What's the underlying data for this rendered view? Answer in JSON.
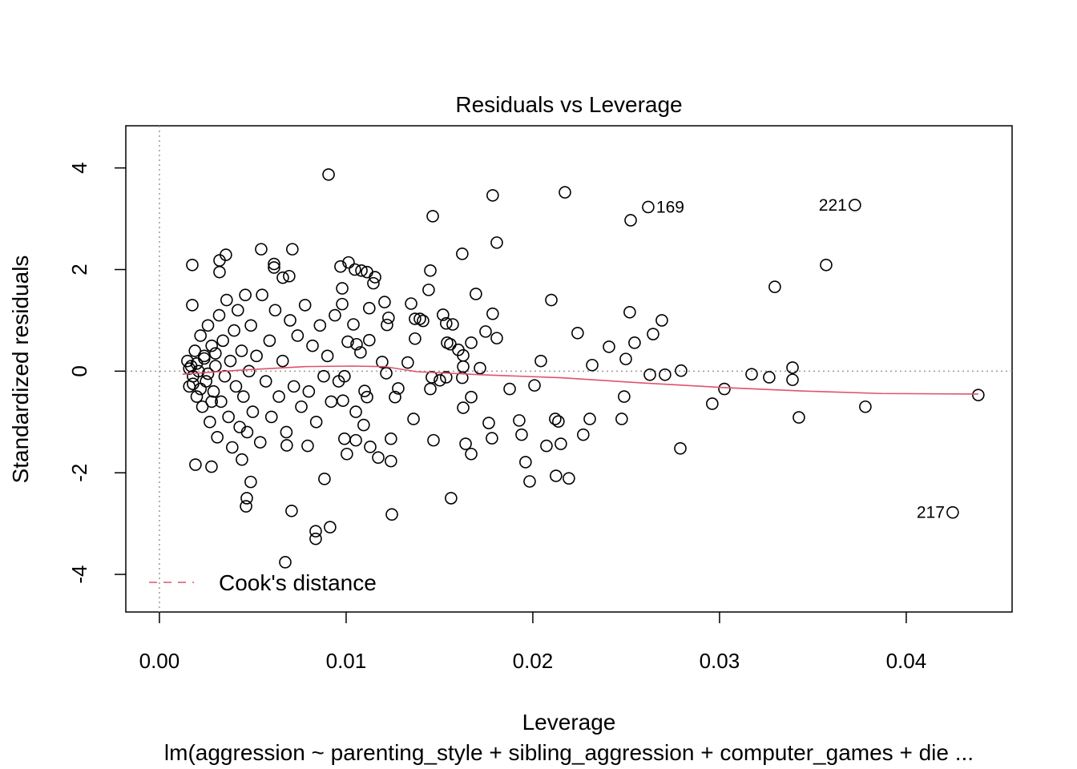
{
  "chart_data": {
    "type": "scatter",
    "title": "Residuals vs Leverage",
    "xlabel": "Leverage",
    "ylabel": "Standardized residuals",
    "subtitle": "lm(aggression ~ parenting_style + sibling_aggression + computer_games + die ...",
    "xlim": [
      -0.0018,
      0.04567
    ],
    "ylim": [
      -4.74,
      4.83
    ],
    "xticks": [
      {
        "value": 0,
        "label": "0.00"
      },
      0.01,
      0.02,
      0.03,
      0.04
    ],
    "yticks": [
      -4,
      -2,
      0,
      2,
      4
    ],
    "reference_lines": {
      "x": 0,
      "y": 0
    },
    "color": "#000000",
    "x": [
      0.00906,
      0.01785,
      0.02172,
      0.01464,
      0.02618,
      0.02524,
      0.03725,
      0.03571,
      0.03296,
      0.04249,
      0.04386,
      0.03781,
      0.03425,
      0.03391,
      0.03391,
      0.03266,
      0.03172,
      0.03026,
      0.02961,
      0.02794,
      0.0279,
      0.02691,
      0.02644,
      0.02545,
      0.02519,
      0.02708,
      0.02627,
      0.02498,
      0.02489,
      0.02476,
      0.02408,
      0.02318,
      0.02305,
      0.0227,
      0.0224,
      0.02193,
      0.02124,
      0.0215,
      0.02137,
      0.0212,
      0.02099,
      0.02073,
      0.02043,
      0.02009,
      0.01983,
      0.01961,
      0.0194,
      0.01927,
      0.01876,
      0.01807,
      0.01785,
      0.01807,
      0.01747,
      0.01695,
      0.01764,
      0.01781,
      0.01717,
      0.0167,
      0.0167,
      0.0167,
      0.0164,
      0.01627,
      0.01622,
      0.01627,
      0.01627,
      0.01622,
      0.01601,
      0.01562,
      0.01571,
      0.01558,
      0.01541,
      0.01536,
      0.01502,
      0.01468,
      0.01451,
      0.01442,
      0.01451,
      0.01459,
      0.01519,
      0.01536,
      0.01412,
      0.01395,
      0.01369,
      0.01348,
      0.01369,
      0.01361,
      0.0133,
      0.01279,
      0.01262,
      0.01245,
      0.0124,
      0.0124,
      0.01227,
      0.01219,
      0.01206,
      0.01193,
      0.01215,
      0.01172,
      0.01129,
      0.01155,
      0.01146,
      0.01112,
      0.01082,
      0.01047,
      0.01013,
      0.0097,
      0.00979,
      0.00979,
      0.01039,
      0.01009,
      0.01056,
      0.01077,
      0.01124,
      0.01124,
      0.01099,
      0.01112,
      0.01094,
      0.01052,
      0.01052,
      0.00991,
      0.00983,
      0.01004,
      0.00991,
      0.00914,
      0.00837,
      0.00837,
      0.00884,
      0.00708,
      0.00674,
      0.00712,
      0.00545,
      0.00614,
      0.00614,
      0.00356,
      0.00322,
      0.00176,
      0.00322,
      0.00176,
      0.00661,
      0.00695,
      0.00468,
      0.00464,
      0.00489,
      0.00442,
      0.00279,
      0.00193,
      0.00682,
      0.00794,
      0.0015,
      0.0016,
      0.0017,
      0.0018,
      0.0019,
      0.002,
      0.0021,
      0.0022,
      0.0023,
      0.0024,
      0.0025,
      0.0026,
      0.0027,
      0.0028,
      0.0029,
      0.003,
      0.0031,
      0.0032,
      0.0033,
      0.0034,
      0.0035,
      0.0036,
      0.0037,
      0.0038,
      0.0039,
      0.004,
      0.0041,
      0.0042,
      0.0043,
      0.0044,
      0.0045,
      0.0046,
      0.0047,
      0.0048,
      0.0049,
      0.005,
      0.0052,
      0.0054,
      0.0055,
      0.0057,
      0.0059,
      0.006,
      0.0062,
      0.0064,
      0.0066,
      0.0068,
      0.007,
      0.0072,
      0.0074,
      0.0076,
      0.0078,
      0.008,
      0.0082,
      0.0084,
      0.0086,
      0.0088,
      0.009,
      0.0092,
      0.0094,
      0.0096,
      0.0016,
      0.0018,
      0.002,
      0.0022,
      0.0024,
      0.0026,
      0.0028,
      0.003
    ],
    "y": [
      3.87,
      3.46,
      3.52,
      3.05,
      3.23,
      2.97,
      3.27,
      2.09,
      1.66,
      -2.78,
      -0.47,
      -0.7,
      -0.91,
      0.07,
      -0.17,
      -0.12,
      -0.06,
      -0.35,
      -0.64,
      0.01,
      -1.52,
      1.0,
      0.73,
      0.56,
      1.16,
      -0.07,
      -0.07,
      0.24,
      -0.5,
      -0.94,
      0.48,
      0.12,
      -0.94,
      -1.25,
      0.75,
      -2.11,
      -2.06,
      -1.43,
      -0.99,
      -0.94,
      1.4,
      -1.47,
      0.2,
      -0.28,
      -2.17,
      -1.79,
      -1.25,
      -0.97,
      -0.35,
      2.53,
      1.13,
      0.65,
      0.78,
      1.52,
      -1.02,
      -1.32,
      0.06,
      0.56,
      -0.51,
      -1.63,
      -1.43,
      -0.72,
      2.31,
      0.31,
      0.09,
      -0.13,
      0.42,
      -2.5,
      0.92,
      0.53,
      0.56,
      -0.12,
      -0.18,
      -1.36,
      1.98,
      1.6,
      -0.35,
      -0.12,
      1.11,
      0.94,
      0.99,
      1.03,
      1.03,
      1.33,
      0.64,
      -0.94,
      0.17,
      -0.34,
      -0.51,
      -2.82,
      -1.77,
      -1.33,
      1.05,
      0.91,
      1.36,
      0.18,
      -0.04,
      -1.7,
      -1.49,
      1.85,
      1.73,
      1.95,
      1.98,
      2.0,
      2.14,
      2.06,
      1.63,
      1.32,
      0.92,
      0.58,
      0.53,
      0.37,
      1.24,
      0.61,
      -0.39,
      -0.51,
      -1.06,
      -0.8,
      -1.36,
      -0.1,
      -0.58,
      -1.63,
      -1.33,
      -3.07,
      -3.15,
      -3.3,
      -2.12,
      -2.75,
      -3.76,
      2.4,
      2.4,
      2.11,
      2.04,
      2.29,
      2.18,
      2.09,
      1.95,
      1.3,
      1.84,
      1.87,
      -2.5,
      -2.66,
      -2.18,
      -1.74,
      -1.88,
      -1.84,
      -1.46,
      -1.47,
      0.2,
      -0.3,
      0.1,
      -0.1,
      0.4,
      -0.5,
      0.0,
      0.7,
      -0.7,
      0.3,
      -0.2,
      0.9,
      -1.0,
      0.5,
      -0.4,
      0.1,
      -1.3,
      1.1,
      -0.6,
      0.6,
      -0.1,
      1.4,
      -0.9,
      0.2,
      -1.5,
      0.8,
      -0.3,
      1.2,
      -1.1,
      0.4,
      -0.5,
      1.5,
      -1.2,
      0.0,
      0.9,
      -0.8,
      0.3,
      -1.4,
      1.5,
      -0.2,
      0.6,
      -0.9,
      1.2,
      -0.5,
      0.2,
      -1.2,
      1.0,
      -0.3,
      0.7,
      -0.7,
      1.3,
      -0.4,
      0.5,
      -1.0,
      0.9,
      -0.1,
      0.3,
      -0.6,
      1.1,
      -0.2,
      0.05,
      -0.25,
      0.15,
      -0.35,
      0.25,
      -0.05,
      -0.6,
      0.35
    ],
    "smooth": {
      "color": "#DF536B",
      "x": [
        0.00124,
        0.00433,
        0.00777,
        0.01034,
        0.01206,
        0.01378,
        0.01721,
        0.0215,
        0.02579,
        0.03009,
        0.03438,
        0.03867,
        0.04386
      ],
      "y": [
        -0.06,
        0.02,
        0.09,
        0.1,
        0.09,
        -0.01,
        -0.07,
        -0.13,
        -0.23,
        -0.32,
        -0.39,
        -0.44,
        -0.45
      ]
    },
    "annotations": [
      {
        "text": "169",
        "x": 0.02618,
        "y": 3.23,
        "side": "right"
      },
      {
        "text": "221",
        "x": 0.03725,
        "y": 3.27,
        "side": "left"
      },
      {
        "text": "217",
        "x": 0.04249,
        "y": -2.78,
        "side": "left"
      }
    ],
    "legend": {
      "position": "bottomleft",
      "label": "Cook's distance",
      "color": "#DF536B"
    }
  }
}
